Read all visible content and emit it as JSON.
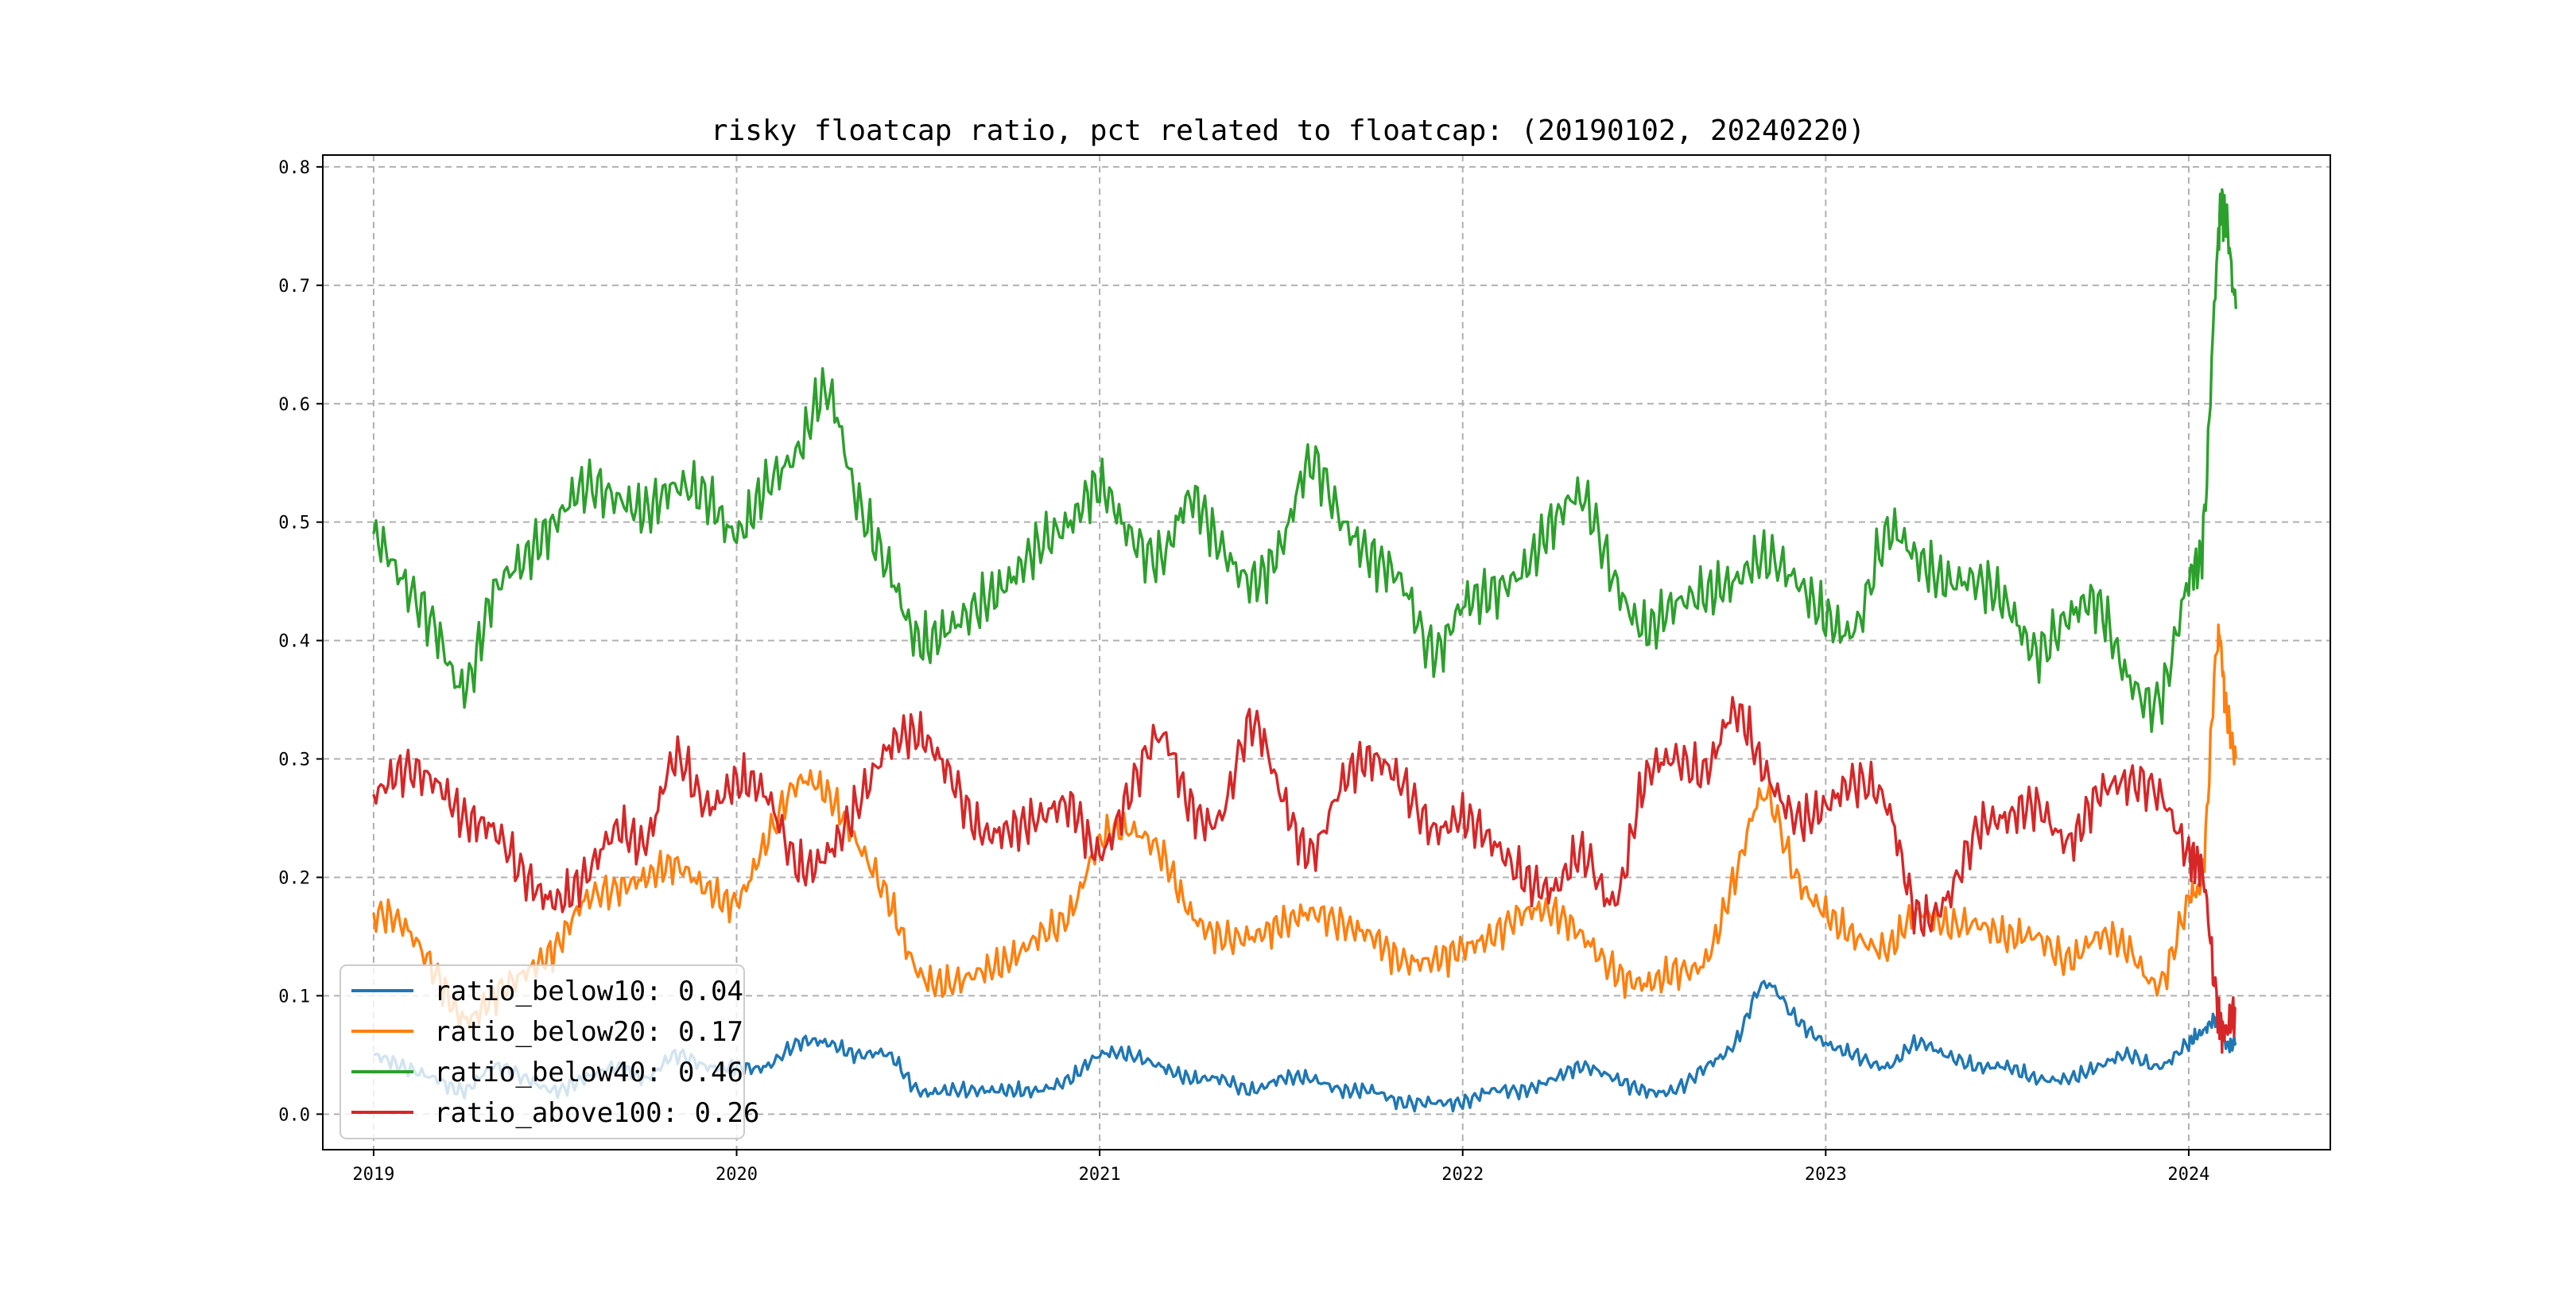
{
  "chart_data": {
    "type": "line",
    "title": "risky floatcap ratio, pct related to floatcap: (20190102, 20240220)",
    "xlabel": "",
    "ylabel": "",
    "xlim": [
      2018.86,
      2024.39
    ],
    "ylim": [
      -0.03,
      0.81
    ],
    "xticks": [
      2019,
      2020,
      2021,
      2022,
      2023,
      2024
    ],
    "xtick_labels": [
      "2019",
      "2020",
      "2021",
      "2022",
      "2023",
      "2024"
    ],
    "yticks": [
      0.0,
      0.1,
      0.2,
      0.3,
      0.4,
      0.5,
      0.6,
      0.7,
      0.8
    ],
    "ytick_labels": [
      "0.0",
      "0.1",
      "0.2",
      "0.3",
      "0.4",
      "0.5",
      "0.6",
      "0.7",
      "0.8"
    ],
    "grid": true,
    "legend_position": "bottom-left",
    "x": [
      2019.0,
      2019.08,
      2019.17,
      2019.25,
      2019.33,
      2019.42,
      2019.5,
      2019.58,
      2019.67,
      2019.75,
      2019.83,
      2019.92,
      2020.0,
      2020.08,
      2020.17,
      2020.25,
      2020.33,
      2020.42,
      2020.5,
      2020.58,
      2020.67,
      2020.75,
      2020.83,
      2020.92,
      2021.0,
      2021.08,
      2021.17,
      2021.25,
      2021.33,
      2021.42,
      2021.5,
      2021.58,
      2021.67,
      2021.75,
      2021.83,
      2021.92,
      2022.0,
      2022.08,
      2022.17,
      2022.25,
      2022.33,
      2022.42,
      2022.5,
      2022.58,
      2022.67,
      2022.75,
      2022.83,
      2022.92,
      2023.0,
      2023.08,
      2023.17,
      2023.25,
      2023.33,
      2023.42,
      2023.5,
      2023.58,
      2023.67,
      2023.75,
      2023.83,
      2023.92,
      2024.0,
      2024.04,
      2024.08,
      2024.1,
      2024.13
    ],
    "series": [
      {
        "name": "ratio_below10",
        "legend_label": "ratio_below10: 0.04",
        "color": "#1f77b4",
        "values": [
          0.05,
          0.04,
          0.03,
          0.02,
          0.04,
          0.03,
          0.02,
          0.03,
          0.04,
          0.03,
          0.05,
          0.04,
          0.04,
          0.04,
          0.06,
          0.06,
          0.05,
          0.05,
          0.02,
          0.02,
          0.02,
          0.02,
          0.02,
          0.03,
          0.05,
          0.05,
          0.04,
          0.03,
          0.03,
          0.02,
          0.03,
          0.03,
          0.02,
          0.02,
          0.01,
          0.01,
          0.01,
          0.02,
          0.02,
          0.03,
          0.04,
          0.03,
          0.02,
          0.02,
          0.04,
          0.06,
          0.11,
          0.08,
          0.06,
          0.05,
          0.04,
          0.06,
          0.05,
          0.04,
          0.04,
          0.03,
          0.03,
          0.04,
          0.05,
          0.04,
          0.06,
          0.07,
          0.08,
          0.06,
          0.06
        ]
      },
      {
        "name": "ratio_below20",
        "legend_label": "ratio_below20: 0.17",
        "color": "#ff7f0e",
        "values": [
          0.17,
          0.16,
          0.12,
          0.08,
          0.1,
          0.12,
          0.14,
          0.18,
          0.19,
          0.2,
          0.21,
          0.19,
          0.18,
          0.23,
          0.28,
          0.27,
          0.23,
          0.18,
          0.12,
          0.11,
          0.12,
          0.13,
          0.15,
          0.17,
          0.23,
          0.24,
          0.22,
          0.17,
          0.15,
          0.15,
          0.16,
          0.17,
          0.16,
          0.15,
          0.13,
          0.13,
          0.14,
          0.15,
          0.17,
          0.17,
          0.15,
          0.12,
          0.11,
          0.12,
          0.13,
          0.2,
          0.27,
          0.2,
          0.17,
          0.15,
          0.14,
          0.17,
          0.16,
          0.16,
          0.15,
          0.15,
          0.13,
          0.15,
          0.14,
          0.11,
          0.18,
          0.21,
          0.4,
          0.35,
          0.3
        ]
      },
      {
        "name": "ratio_below40",
        "legend_label": "ratio_below40: 0.46",
        "color": "#2ca02c",
        "values": [
          0.49,
          0.45,
          0.41,
          0.36,
          0.44,
          0.47,
          0.5,
          0.53,
          0.52,
          0.51,
          0.53,
          0.52,
          0.49,
          0.53,
          0.56,
          0.61,
          0.52,
          0.46,
          0.4,
          0.41,
          0.43,
          0.45,
          0.48,
          0.5,
          0.53,
          0.49,
          0.47,
          0.52,
          0.48,
          0.45,
          0.48,
          0.55,
          0.5,
          0.47,
          0.45,
          0.39,
          0.43,
          0.44,
          0.46,
          0.5,
          0.52,
          0.45,
          0.41,
          0.43,
          0.44,
          0.45,
          0.47,
          0.45,
          0.42,
          0.41,
          0.49,
          0.47,
          0.45,
          0.45,
          0.43,
          0.39,
          0.42,
          0.43,
          0.37,
          0.35,
          0.45,
          0.49,
          0.73,
          0.76,
          0.68
        ]
      },
      {
        "name": "ratio_above100",
        "legend_label": "ratio_above100: 0.26",
        "color": "#d62728",
        "values": [
          0.27,
          0.29,
          0.28,
          0.25,
          0.24,
          0.2,
          0.18,
          0.2,
          0.24,
          0.23,
          0.3,
          0.26,
          0.28,
          0.27,
          0.21,
          0.22,
          0.26,
          0.31,
          0.32,
          0.29,
          0.24,
          0.24,
          0.25,
          0.26,
          0.22,
          0.27,
          0.32,
          0.26,
          0.25,
          0.33,
          0.27,
          0.22,
          0.28,
          0.3,
          0.28,
          0.24,
          0.25,
          0.23,
          0.2,
          0.19,
          0.22,
          0.18,
          0.28,
          0.3,
          0.29,
          0.34,
          0.29,
          0.25,
          0.26,
          0.28,
          0.26,
          0.17,
          0.18,
          0.24,
          0.25,
          0.26,
          0.23,
          0.27,
          0.28,
          0.27,
          0.22,
          0.2,
          0.09,
          0.07,
          0.09
        ]
      }
    ]
  }
}
